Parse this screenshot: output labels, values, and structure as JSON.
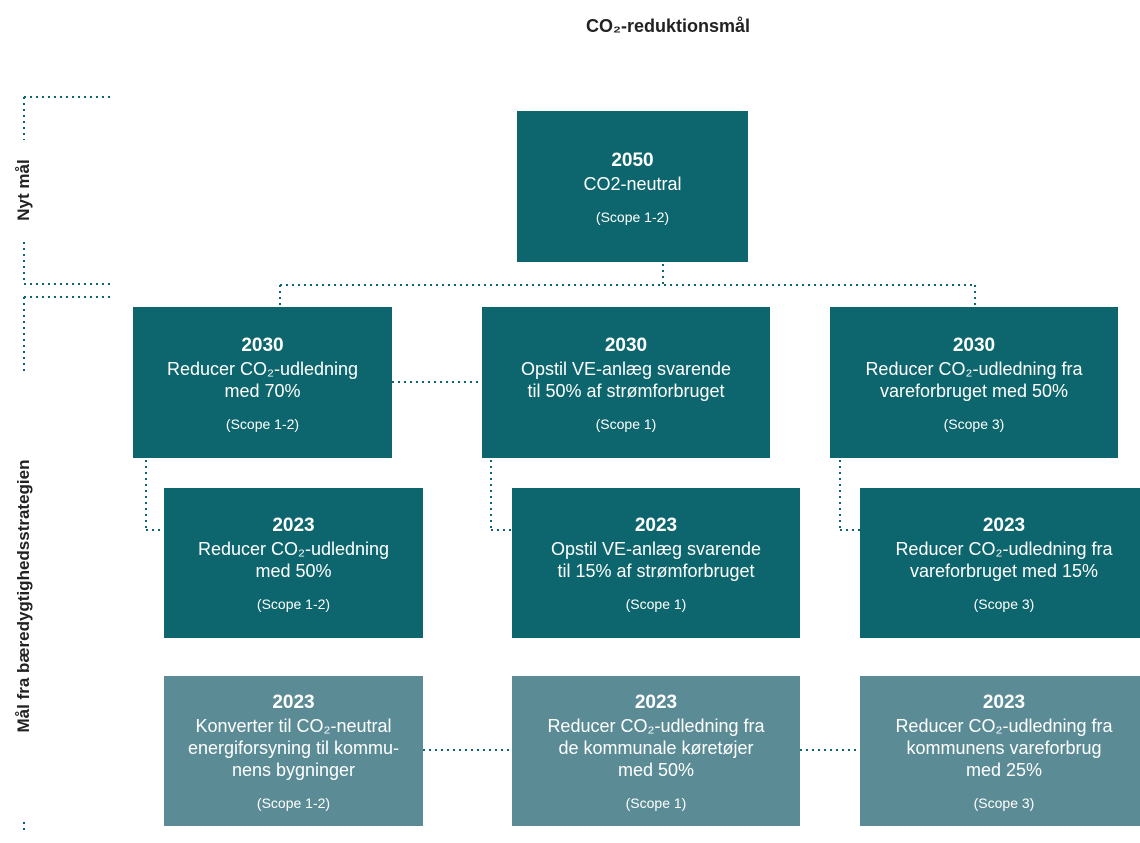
{
  "title": "CO₂-reduktionsmål",
  "side_labels": [
    "Nyt mål",
    "Mål fra bæredygtighedsstrategien"
  ],
  "nodes": [
    {
      "year": "2050",
      "lines": [
        "CO2-neutral"
      ],
      "scope": "(Scope 1-2)"
    },
    {
      "year": "2030",
      "lines": [
        "Reducer CO₂-udledning",
        "med 70%"
      ],
      "scope": "(Scope 1-2)"
    },
    {
      "year": "2030",
      "lines": [
        "Opstil VE-anlæg svarende",
        "til 50% af strømforbruget"
      ],
      "scope": "(Scope 1)"
    },
    {
      "year": "2030",
      "lines": [
        "Reducer CO₂-udledning fra",
        "vareforbruget med 50%"
      ],
      "scope": "(Scope 3)"
    },
    {
      "year": "2023",
      "lines": [
        "Reducer CO₂-udledning",
        "med 50%"
      ],
      "scope": "(Scope 1-2)"
    },
    {
      "year": "2023",
      "lines": [
        "Opstil VE-anlæg svarende",
        "til 15% af strømforbruget"
      ],
      "scope": "(Scope 1)"
    },
    {
      "year": "2023",
      "lines": [
        "Reducer CO₂-udledning fra",
        "vareforbruget med 15%"
      ],
      "scope": "(Scope 3)"
    },
    {
      "year": "2023",
      "lines": [
        "Konverter til CO₂-neutral",
        "energiforsyning til kommu-",
        "nens bygninger"
      ],
      "scope": "(Scope 1-2)"
    },
    {
      "year": "2023",
      "lines": [
        "Reducer CO₂-udledning fra",
        "de kommunale køretøjer",
        "med 50%"
      ],
      "scope": "(Scope 1)"
    },
    {
      "year": "2023",
      "lines": [
        "Reducer CO₂-udledning fra",
        "kommunens vareforbrug",
        "med 25%"
      ],
      "scope": "(Scope 3)"
    }
  ]
}
